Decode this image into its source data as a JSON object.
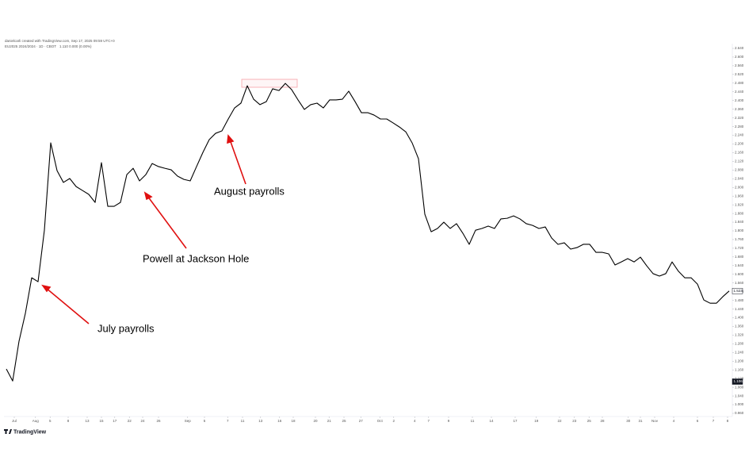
{
  "header": {
    "credit": "danielcarli created with TradingView.com, Sep 17, 2025 09:59 UTC+0",
    "symbol": "EU2025 2024/2024 · 1D · CBOT",
    "quote": "1.110  0.000 (0.00%)"
  },
  "logo": "TradingView",
  "chart_data": {
    "type": "line",
    "color": "#000000",
    "values": [
      1.164,
      1.109,
      1.292,
      1.42,
      1.584,
      1.566,
      1.803,
      2.205,
      2.077,
      2.023,
      2.041,
      2.004,
      1.986,
      1.968,
      1.931,
      2.114,
      1.913,
      1.913,
      1.931,
      2.059,
      2.088,
      2.03,
      2.059,
      2.11,
      2.096,
      2.088,
      2.081,
      2.052,
      2.037,
      2.03,
      2.096,
      2.161,
      2.22,
      2.249,
      2.26,
      2.315,
      2.366,
      2.388,
      2.468,
      2.406,
      2.381,
      2.395,
      2.454,
      2.446,
      2.479,
      2.45,
      2.403,
      2.359,
      2.381,
      2.388,
      2.366,
      2.403,
      2.403,
      2.406,
      2.443,
      2.395,
      2.344,
      2.344,
      2.333,
      2.315,
      2.315,
      2.297,
      2.278,
      2.256,
      2.205,
      2.132,
      1.877,
      1.796,
      1.811,
      1.84,
      1.811,
      1.833,
      1.789,
      1.738,
      1.803,
      1.811,
      1.822,
      1.811,
      1.855,
      1.858,
      1.869,
      1.855,
      1.833,
      1.825,
      1.811,
      1.818,
      1.767,
      1.738,
      1.745,
      1.716,
      1.723,
      1.738,
      1.738,
      1.701,
      1.701,
      1.694,
      1.643,
      1.657,
      1.672,
      1.657,
      1.679,
      1.639,
      1.603,
      1.592,
      1.603,
      1.657,
      1.614,
      1.584,
      1.584,
      1.555,
      1.482,
      1.467,
      1.467,
      1.497,
      1.523
    ],
    "xlim": [
      0,
      114
    ],
    "xticks": [
      {
        "value": 1.25,
        "label": "Jul"
      },
      {
        "value": 4.6,
        "label": "Aug"
      },
      {
        "value": 6.9,
        "label": "5"
      },
      {
        "value": 9.75,
        "label": "8"
      },
      {
        "value": 12.75,
        "label": "13"
      },
      {
        "value": 15,
        "label": "15"
      },
      {
        "value": 17.1,
        "label": "17"
      },
      {
        "value": 19.4,
        "label": "22"
      },
      {
        "value": 21.5,
        "label": "24"
      },
      {
        "value": 24,
        "label": "26"
      },
      {
        "value": 28.6,
        "label": "Sep"
      },
      {
        "value": 31.25,
        "label": "5"
      },
      {
        "value": 34.9,
        "label": "7"
      },
      {
        "value": 37.25,
        "label": "11"
      },
      {
        "value": 40.1,
        "label": "13"
      },
      {
        "value": 43.1,
        "label": "16"
      },
      {
        "value": 45.25,
        "label": "18"
      },
      {
        "value": 48.75,
        "label": "20"
      },
      {
        "value": 50.9,
        "label": "21"
      },
      {
        "value": 53.25,
        "label": "25"
      },
      {
        "value": 55.9,
        "label": "27"
      },
      {
        "value": 58.9,
        "label": "Oct"
      },
      {
        "value": 61.1,
        "label": "2"
      },
      {
        "value": 64.4,
        "label": "4"
      },
      {
        "value": 66.6,
        "label": "7"
      },
      {
        "value": 69.75,
        "label": "9"
      },
      {
        "value": 73.5,
        "label": "11"
      },
      {
        "value": 76.5,
        "label": "14"
      },
      {
        "value": 80.25,
        "label": "17"
      },
      {
        "value": 83.6,
        "label": "19"
      },
      {
        "value": 87.25,
        "label": "22"
      },
      {
        "value": 89.6,
        "label": "23"
      },
      {
        "value": 91.9,
        "label": "25"
      },
      {
        "value": 94,
        "label": "28"
      },
      {
        "value": 98.1,
        "label": "30"
      },
      {
        "value": 100,
        "label": "31"
      },
      {
        "value": 102.25,
        "label": "Nov"
      },
      {
        "value": 105.25,
        "label": "4"
      },
      {
        "value": 109,
        "label": "6"
      },
      {
        "value": 111.5,
        "label": "7"
      },
      {
        "value": 113.75,
        "label": "8"
      }
    ],
    "ylim": [
      0.96,
      2.64
    ],
    "yticks": [
      {
        "value": 2.64,
        "label": "2.640"
      },
      {
        "value": 2.6,
        "label": "2.600"
      },
      {
        "value": 2.56,
        "label": "2.560"
      },
      {
        "value": 2.52,
        "label": "2.520"
      },
      {
        "value": 2.48,
        "label": "2.480"
      },
      {
        "value": 2.44,
        "label": "2.440"
      },
      {
        "value": 2.4,
        "label": "2.400"
      },
      {
        "value": 2.36,
        "label": "2.360"
      },
      {
        "value": 2.32,
        "label": "2.320"
      },
      {
        "value": 2.28,
        "label": "2.280"
      },
      {
        "value": 2.24,
        "label": "2.240"
      },
      {
        "value": 2.2,
        "label": "2.200"
      },
      {
        "value": 2.16,
        "label": "2.160"
      },
      {
        "value": 2.12,
        "label": "2.120"
      },
      {
        "value": 2.08,
        "label": "2.080"
      },
      {
        "value": 2.04,
        "label": "2.040"
      },
      {
        "value": 2,
        "label": "2.000"
      },
      {
        "value": 1.96,
        "label": "1.960"
      },
      {
        "value": 1.92,
        "label": "1.920"
      },
      {
        "value": 1.88,
        "label": "1.880"
      },
      {
        "value": 1.84,
        "label": "1.840"
      },
      {
        "value": 1.8,
        "label": "1.800"
      },
      {
        "value": 1.76,
        "label": "1.760"
      },
      {
        "value": 1.72,
        "label": "1.720"
      },
      {
        "value": 1.68,
        "label": "1.680"
      },
      {
        "value": 1.64,
        "label": "1.640"
      },
      {
        "value": 1.6,
        "label": "1.600"
      },
      {
        "value": 1.56,
        "label": "1.560"
      },
      {
        "value": 1.52,
        "label": "1.520"
      },
      {
        "value": 1.48,
        "label": "1.480"
      },
      {
        "value": 1.44,
        "label": "1.440"
      },
      {
        "value": 1.4,
        "label": "1.400"
      },
      {
        "value": 1.36,
        "label": "1.360"
      },
      {
        "value": 1.32,
        "label": "1.320"
      },
      {
        "value": 1.28,
        "label": "1.280"
      },
      {
        "value": 1.24,
        "label": "1.240"
      },
      {
        "value": 1.2,
        "label": "1.200"
      },
      {
        "value": 1.16,
        "label": "1.160"
      },
      {
        "value": 1.12,
        "label": "1.120"
      },
      {
        "value": 1.08,
        "label": "1.080"
      },
      {
        "value": 1.04,
        "label": "1.040"
      },
      {
        "value": 1,
        "label": "1.000"
      },
      {
        "value": 0.96,
        "label": "0.960"
      }
    ],
    "price_labels": [
      1.523,
      1.106
    ],
    "annotations": [
      "July payrolls",
      "Powell at Jackson Hole",
      "August payrolls"
    ]
  }
}
